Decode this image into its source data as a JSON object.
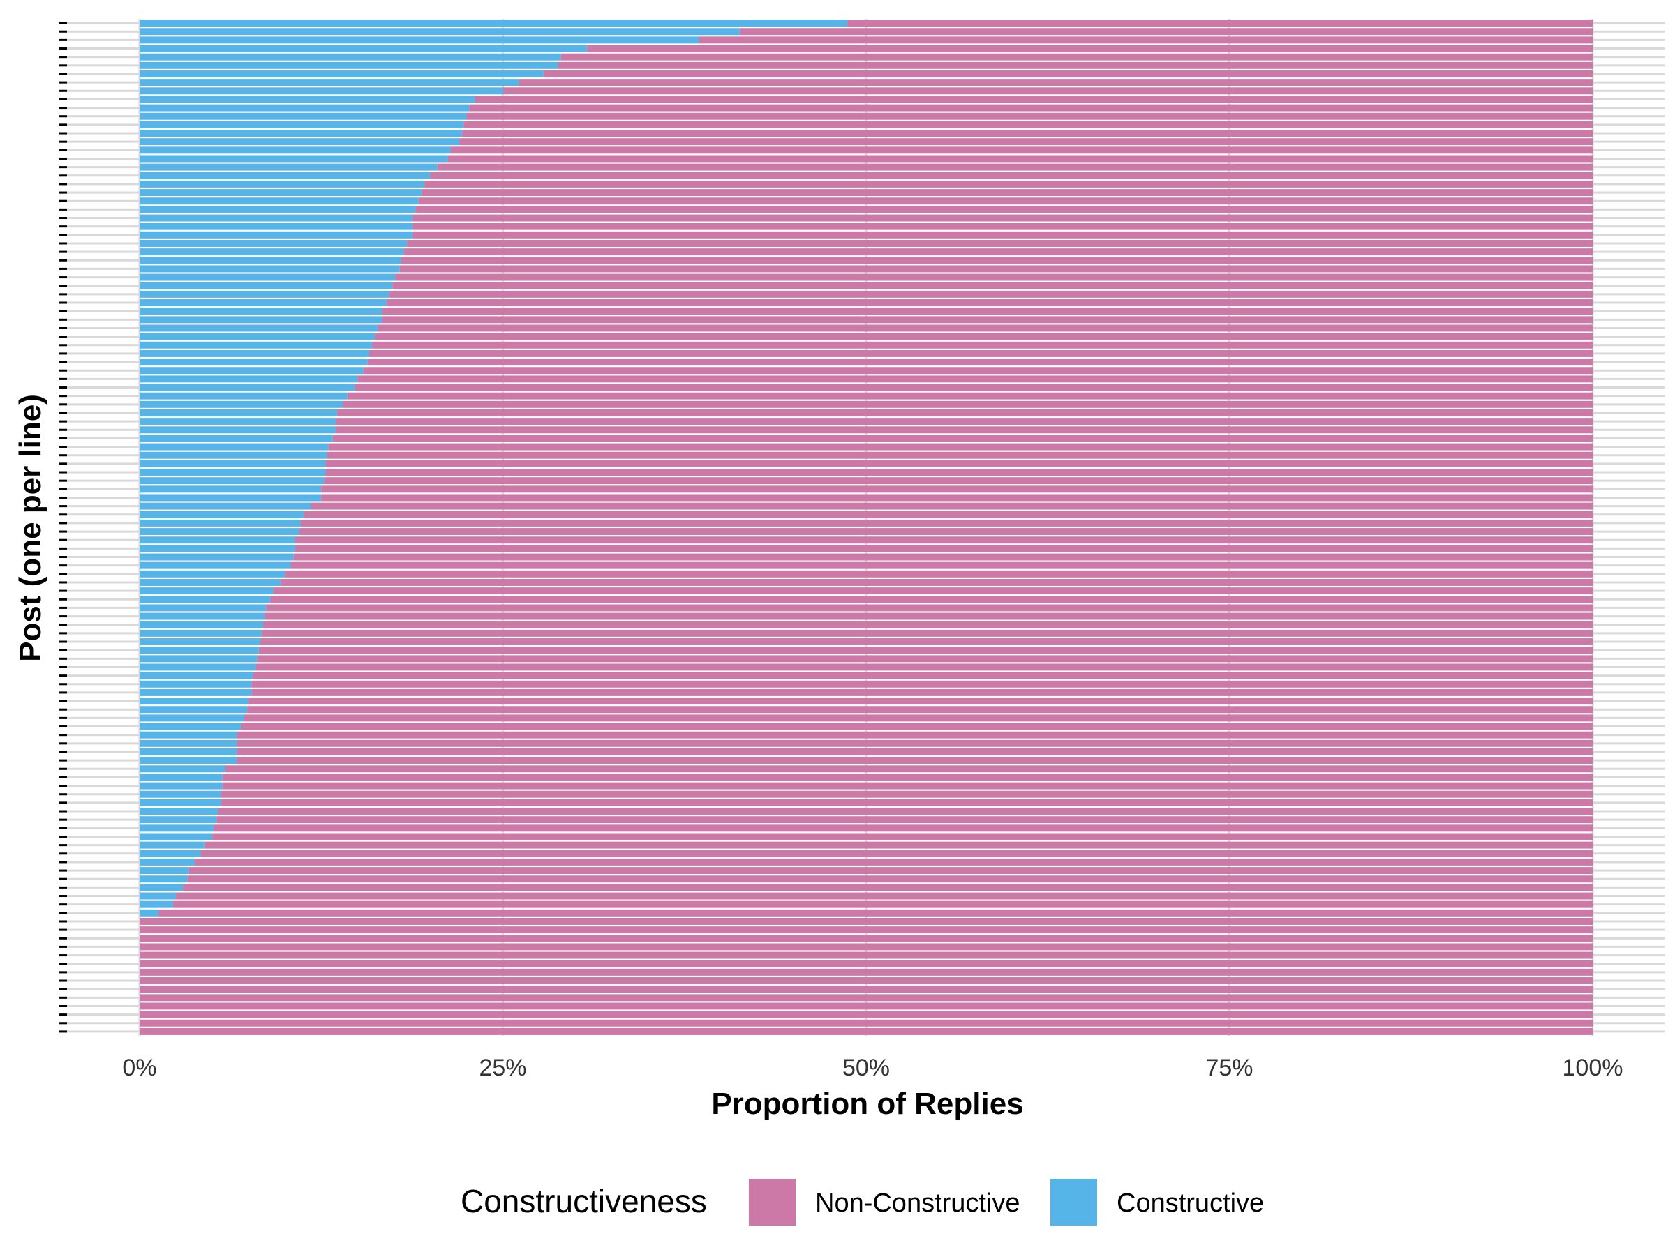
{
  "chart_data": {
    "type": "bar",
    "stacked": true,
    "orientation": "horizontal",
    "xlabel": "Proportion of Replies",
    "ylabel": "Post (one per line)",
    "xlim": [
      0,
      1
    ],
    "x_ticks": [
      "0%",
      "25%",
      "50%",
      "75%",
      "100%"
    ],
    "grid": true,
    "legend": {
      "position": "bottom",
      "title": "Constructiveness",
      "entries": [
        "Non-Constructive",
        "Constructive"
      ]
    },
    "series": [
      {
        "name": "Constructive",
        "color": "#56B4E9",
        "values": [
          0.487,
          0.413,
          0.385,
          0.308,
          0.29,
          0.288,
          0.278,
          0.261,
          0.25,
          0.231,
          0.227,
          0.225,
          0.223,
          0.222,
          0.22,
          0.214,
          0.212,
          0.205,
          0.2,
          0.196,
          0.194,
          0.192,
          0.19,
          0.188,
          0.188,
          0.188,
          0.184,
          0.182,
          0.18,
          0.179,
          0.176,
          0.174,
          0.172,
          0.17,
          0.167,
          0.167,
          0.164,
          0.162,
          0.16,
          0.158,
          0.157,
          0.154,
          0.15,
          0.148,
          0.143,
          0.14,
          0.136,
          0.135,
          0.135,
          0.133,
          0.13,
          0.129,
          0.128,
          0.128,
          0.127,
          0.125,
          0.125,
          0.118,
          0.113,
          0.111,
          0.11,
          0.107,
          0.107,
          0.106,
          0.104,
          0.1,
          0.097,
          0.092,
          0.09,
          0.087,
          0.086,
          0.085,
          0.084,
          0.083,
          0.082,
          0.081,
          0.08,
          0.078,
          0.077,
          0.077,
          0.075,
          0.074,
          0.072,
          0.07,
          0.067,
          0.067,
          0.067,
          0.067,
          0.059,
          0.057,
          0.057,
          0.056,
          0.056,
          0.054,
          0.053,
          0.051,
          0.05,
          0.045,
          0.042,
          0.038,
          0.034,
          0.033,
          0.03,
          0.025,
          0.023,
          0.013,
          0,
          0,
          0,
          0,
          0,
          0,
          0,
          0,
          0,
          0,
          0,
          0,
          0,
          0
        ]
      },
      {
        "name": "Non-Constructive",
        "color": "#CC79A7",
        "values": [
          0.513,
          0.587,
          0.615,
          0.692,
          0.71,
          0.712,
          0.722,
          0.739,
          0.75,
          0.769,
          0.773,
          0.775,
          0.777,
          0.778,
          0.78,
          0.786,
          0.788,
          0.795,
          0.8,
          0.804,
          0.806,
          0.808,
          0.81,
          0.812,
          0.812,
          0.812,
          0.816,
          0.818,
          0.82,
          0.821,
          0.824,
          0.826,
          0.828,
          0.83,
          0.833,
          0.833,
          0.836,
          0.838,
          0.84,
          0.842,
          0.843,
          0.846,
          0.85,
          0.852,
          0.857,
          0.86,
          0.864,
          0.865,
          0.865,
          0.867,
          0.87,
          0.871,
          0.872,
          0.872,
          0.873,
          0.875,
          0.875,
          0.882,
          0.887,
          0.889,
          0.89,
          0.893,
          0.893,
          0.894,
          0.896,
          0.9,
          0.903,
          0.908,
          0.91,
          0.913,
          0.914,
          0.915,
          0.916,
          0.917,
          0.918,
          0.919,
          0.92,
          0.922,
          0.923,
          0.923,
          0.925,
          0.926,
          0.928,
          0.93,
          0.933,
          0.933,
          0.933,
          0.933,
          0.941,
          0.943,
          0.943,
          0.944,
          0.944,
          0.946,
          0.947,
          0.949,
          0.95,
          0.955,
          0.958,
          0.962,
          0.966,
          0.967,
          0.97,
          0.975,
          0.977,
          0.987,
          1,
          1,
          1,
          1,
          1,
          1,
          1,
          1,
          1,
          1,
          1,
          1,
          1,
          1
        ]
      }
    ]
  }
}
